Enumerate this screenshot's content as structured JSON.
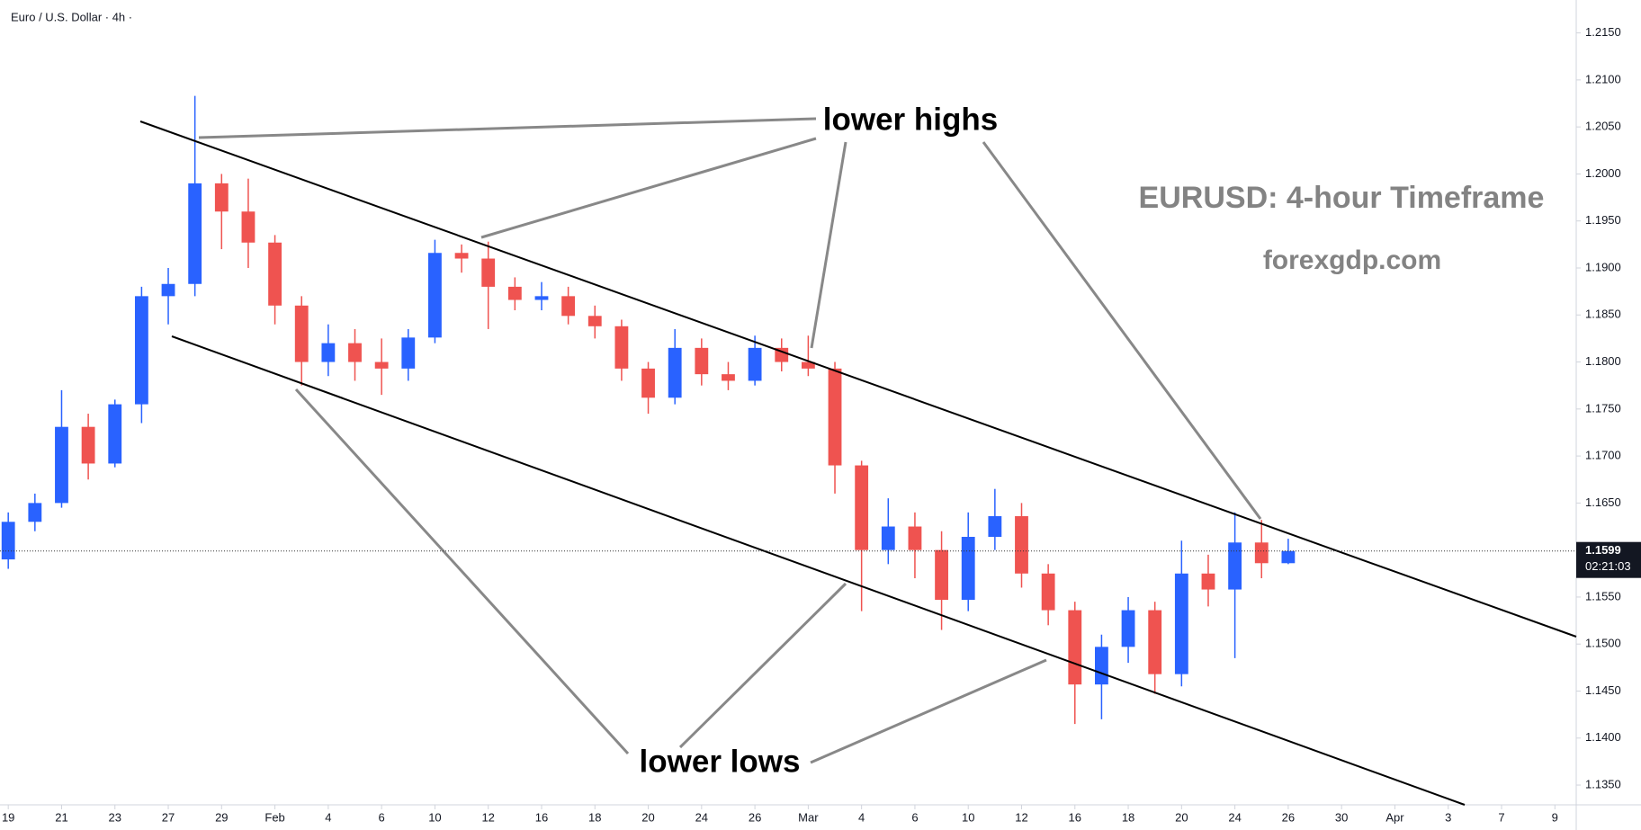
{
  "chart_data": {
    "type": "candlestick",
    "title": "Euro / U.S. Dollar · 4h ·",
    "annotations": {
      "highs": "lower highs",
      "lows": "lower lows",
      "heading": "EURUSD: 4-hour Timeframe",
      "site": "forexgdp.com"
    },
    "up_color": "#2962ff",
    "down_color": "#ef5350",
    "last_price": 1.1599,
    "countdown": "02:21:03",
    "xlim": [
      -0.31,
      58.8
    ],
    "ylim": [
      1.1329,
      1.2185
    ],
    "xticks": [
      {
        "value": 0,
        "label": "19"
      },
      {
        "value": 2,
        "label": "21"
      },
      {
        "value": 4,
        "label": "23"
      },
      {
        "value": 6,
        "label": "27"
      },
      {
        "value": 8,
        "label": "29"
      },
      {
        "value": 10,
        "label": "Feb"
      },
      {
        "value": 12,
        "label": "4"
      },
      {
        "value": 14,
        "label": "6"
      },
      {
        "value": 16,
        "label": "10"
      },
      {
        "value": 18,
        "label": "12"
      },
      {
        "value": 20,
        "label": "16"
      },
      {
        "value": 22,
        "label": "18"
      },
      {
        "value": 24,
        "label": "20"
      },
      {
        "value": 26,
        "label": "24"
      },
      {
        "value": 28,
        "label": "26"
      },
      {
        "value": 30,
        "label": "Mar"
      },
      {
        "value": 32,
        "label": "4"
      },
      {
        "value": 34,
        "label": "6"
      },
      {
        "value": 36,
        "label": "10"
      },
      {
        "value": 38,
        "label": "12"
      },
      {
        "value": 40,
        "label": "16"
      },
      {
        "value": 42,
        "label": "18"
      },
      {
        "value": 44,
        "label": "20"
      },
      {
        "value": 46,
        "label": "24"
      },
      {
        "value": 48,
        "label": "26"
      },
      {
        "value": 50,
        "label": "30"
      },
      {
        "value": 52,
        "label": "Apr"
      },
      {
        "value": 54,
        "label": "3"
      },
      {
        "value": 56,
        "label": "7"
      },
      {
        "value": 58,
        "label": "9"
      }
    ],
    "yticks": [
      {
        "value": 1.135,
        "label": "1.1350"
      },
      {
        "value": 1.14,
        "label": "1.1400"
      },
      {
        "value": 1.145,
        "label": "1.1450"
      },
      {
        "value": 1.15,
        "label": "1.1500"
      },
      {
        "value": 1.155,
        "label": "1.1550"
      },
      {
        "value": 1.16,
        "label": "1.1600"
      },
      {
        "value": 1.165,
        "label": "1.1650"
      },
      {
        "value": 1.17,
        "label": "1.1700"
      },
      {
        "value": 1.175,
        "label": "1.1750"
      },
      {
        "value": 1.18,
        "label": "1.1800"
      },
      {
        "value": 1.185,
        "label": "1.1850"
      },
      {
        "value": 1.19,
        "label": "1.1900"
      },
      {
        "value": 1.195,
        "label": "1.1950"
      },
      {
        "value": 1.2,
        "label": "1.2000"
      },
      {
        "value": 1.205,
        "label": "1.2050"
      },
      {
        "value": 1.21,
        "label": "1.2100"
      },
      {
        "value": 1.215,
        "label": "1.2150"
      }
    ],
    "x": [
      0,
      1,
      2,
      3,
      4,
      5,
      6,
      7,
      8,
      9,
      10,
      11,
      12,
      13,
      14,
      15,
      16,
      17,
      18,
      19,
      20,
      21,
      22,
      23,
      24,
      25,
      26,
      27,
      28,
      29,
      30,
      31,
      32,
      33,
      34,
      35,
      36,
      37,
      38,
      39,
      40,
      41,
      42,
      43,
      44,
      45,
      46,
      47,
      48
    ],
    "open": [
      1.159,
      1.163,
      1.165,
      1.1731,
      1.1692,
      1.1755,
      1.187,
      1.1883,
      1.199,
      1.196,
      1.1927,
      1.186,
      1.18,
      1.182,
      1.18,
      1.1793,
      1.1826,
      1.1916,
      1.191,
      1.188,
      1.1866,
      1.187,
      1.1849,
      1.1838,
      1.1793,
      1.1762,
      1.1815,
      1.1787,
      1.178,
      1.1815,
      1.18,
      1.1793,
      1.169,
      1.16,
      1.1625,
      1.16,
      1.1547,
      1.1614,
      1.1636,
      1.1575,
      1.1536,
      1.1457,
      1.1497,
      1.1536,
      1.1468,
      1.1575,
      1.1558,
      1.1608,
      1.1586
    ],
    "high": [
      1.164,
      1.166,
      1.177,
      1.1745,
      1.176,
      1.188,
      1.19,
      1.2083,
      1.2,
      1.1995,
      1.1935,
      1.187,
      1.184,
      1.1835,
      1.1825,
      1.1835,
      1.193,
      1.1925,
      1.1928,
      1.189,
      1.1885,
      1.188,
      1.186,
      1.1845,
      1.18,
      1.1835,
      1.1825,
      1.18,
      1.1828,
      1.1825,
      1.1828,
      1.18,
      1.1695,
      1.1655,
      1.164,
      1.162,
      1.164,
      1.1665,
      1.165,
      1.1585,
      1.1545,
      1.151,
      1.155,
      1.1545,
      1.161,
      1.1595,
      1.164,
      1.1632,
      1.1612
    ],
    "low": [
      1.158,
      1.162,
      1.1645,
      1.1675,
      1.1688,
      1.1735,
      1.184,
      1.187,
      1.192,
      1.19,
      1.184,
      1.1775,
      1.1785,
      1.178,
      1.1765,
      1.178,
      1.182,
      1.1895,
      1.1835,
      1.1855,
      1.1855,
      1.184,
      1.1825,
      1.178,
      1.1745,
      1.1755,
      1.1775,
      1.177,
      1.1775,
      1.179,
      1.1785,
      1.166,
      1.1535,
      1.1585,
      1.157,
      1.1515,
      1.1535,
      1.16,
      1.156,
      1.152,
      1.1415,
      1.142,
      1.148,
      1.1447,
      1.1455,
      1.154,
      1.1485,
      1.157,
      1.1585
    ],
    "close": [
      1.163,
      1.165,
      1.1731,
      1.1692,
      1.1755,
      1.187,
      1.1883,
      1.199,
      1.196,
      1.1927,
      1.186,
      1.18,
      1.182,
      1.18,
      1.1793,
      1.1826,
      1.1916,
      1.191,
      1.188,
      1.1866,
      1.187,
      1.1849,
      1.1838,
      1.1793,
      1.1762,
      1.1815,
      1.1787,
      1.178,
      1.1815,
      1.18,
      1.1793,
      1.169,
      1.16,
      1.1625,
      1.16,
      1.1547,
      1.1614,
      1.1636,
      1.1575,
      1.1536,
      1.1457,
      1.1497,
      1.1536,
      1.1468,
      1.1575,
      1.1558,
      1.1608,
      1.1586,
      1.1599
    ]
  }
}
